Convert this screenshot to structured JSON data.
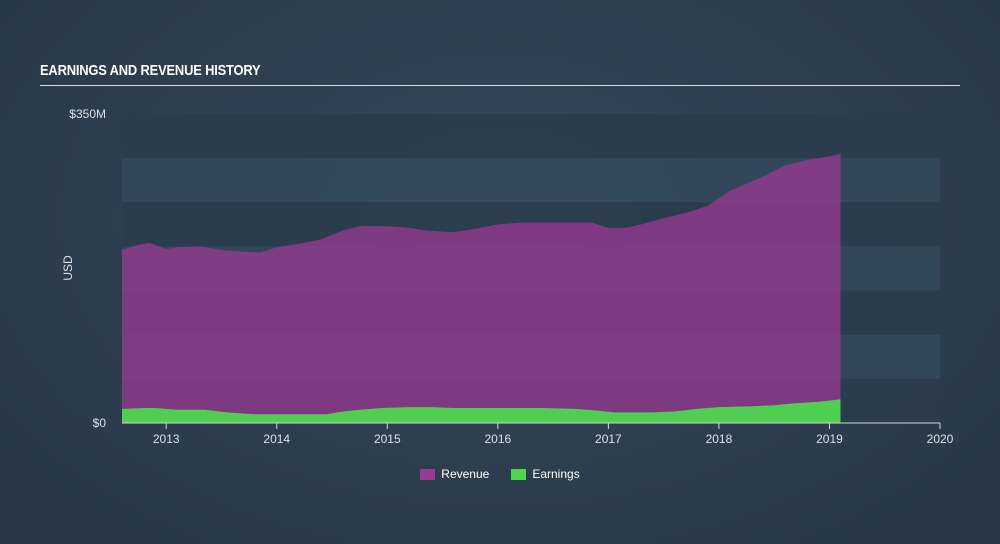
{
  "chart_data": {
    "type": "area",
    "title": "EARNINGS AND REVENUE HISTORY",
    "ylabel": "USD",
    "ylim": [
      0,
      350
    ],
    "yticks": [
      {
        "value": 350,
        "label": "$350M"
      },
      {
        "value": 0,
        "label": "$0"
      }
    ],
    "xlim": [
      2012.6,
      2020.0
    ],
    "xticks": [
      "2013",
      "2014",
      "2015",
      "2016",
      "2017",
      "2018",
      "2019",
      "2020"
    ],
    "grid": true,
    "legend_position": "bottom",
    "series": [
      {
        "name": "Revenue",
        "color": "#9b3a93",
        "points": [
          [
            2012.6,
            196
          ],
          [
            2012.75,
            202
          ],
          [
            2012.85,
            204
          ],
          [
            2013.0,
            197
          ],
          [
            2013.1,
            199
          ],
          [
            2013.3,
            200
          ],
          [
            2013.5,
            196
          ],
          [
            2013.7,
            194
          ],
          [
            2013.85,
            193
          ],
          [
            2014.0,
            199
          ],
          [
            2014.2,
            203
          ],
          [
            2014.4,
            208
          ],
          [
            2014.6,
            218
          ],
          [
            2014.75,
            223
          ],
          [
            2015.0,
            223
          ],
          [
            2015.2,
            221
          ],
          [
            2015.35,
            218
          ],
          [
            2015.6,
            216
          ],
          [
            2015.8,
            220
          ],
          [
            2016.0,
            225
          ],
          [
            2016.2,
            227
          ],
          [
            2016.45,
            227
          ],
          [
            2016.7,
            227
          ],
          [
            2016.85,
            227
          ],
          [
            2017.0,
            221
          ],
          [
            2017.15,
            221
          ],
          [
            2017.3,
            225
          ],
          [
            2017.5,
            232
          ],
          [
            2017.7,
            238
          ],
          [
            2017.9,
            246
          ],
          [
            2018.1,
            263
          ],
          [
            2018.25,
            271
          ],
          [
            2018.45,
            282
          ],
          [
            2018.6,
            292
          ],
          [
            2018.8,
            298
          ],
          [
            2019.0,
            302
          ],
          [
            2019.1,
            305
          ]
        ]
      },
      {
        "name": "Earnings",
        "color": "#4ed64e",
        "points": [
          [
            2012.6,
            16
          ],
          [
            2012.8,
            17
          ],
          [
            2012.9,
            17
          ],
          [
            2013.1,
            15
          ],
          [
            2013.35,
            15
          ],
          [
            2013.55,
            12
          ],
          [
            2013.8,
            10
          ],
          [
            2014.2,
            10
          ],
          [
            2014.45,
            10
          ],
          [
            2014.6,
            13
          ],
          [
            2014.75,
            15
          ],
          [
            2014.95,
            17
          ],
          [
            2015.2,
            18
          ],
          [
            2015.4,
            18
          ],
          [
            2015.6,
            17
          ],
          [
            2016.0,
            17
          ],
          [
            2016.4,
            17
          ],
          [
            2016.7,
            16
          ],
          [
            2016.9,
            14
          ],
          [
            2017.05,
            12
          ],
          [
            2017.4,
            12
          ],
          [
            2017.6,
            13
          ],
          [
            2017.8,
            16
          ],
          [
            2018.0,
            18
          ],
          [
            2018.3,
            19
          ],
          [
            2018.5,
            20
          ],
          [
            2018.65,
            22
          ],
          [
            2018.9,
            24
          ],
          [
            2019.05,
            26
          ],
          [
            2019.1,
            27
          ]
        ]
      }
    ]
  }
}
